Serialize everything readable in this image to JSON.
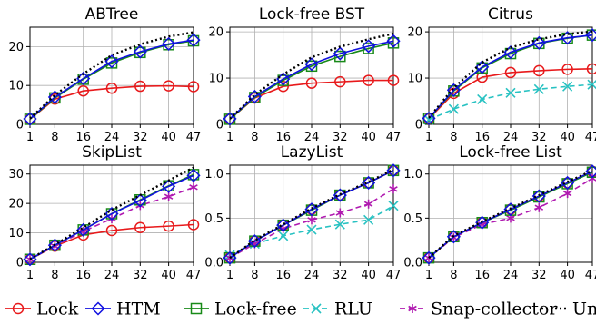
{
  "legend": {
    "series": [
      {
        "name": "Lock",
        "color": "#e8191b",
        "marker": "circle",
        "dash": "solid"
      },
      {
        "name": "HTM",
        "color": "#1010e0",
        "marker": "diamond",
        "dash": "solid"
      },
      {
        "name": "Lock-free",
        "color": "#188a18",
        "marker": "square",
        "dash": "solid"
      },
      {
        "name": "RLU",
        "color": "#28c2c2",
        "marker": "x",
        "dash": "dashed"
      },
      {
        "name": "Snap-collector",
        "color": "#b01ab0",
        "marker": "star",
        "dash": "dashed"
      },
      {
        "name": "Unsafe",
        "color": "#000000",
        "marker": "none",
        "dash": "dotted"
      }
    ]
  },
  "chart_data": [
    {
      "type": "line",
      "title": "ABTree",
      "x": [
        1,
        8,
        16,
        24,
        32,
        40,
        47
      ],
      "xlim": [
        1,
        47
      ],
      "ylim": [
        0,
        25
      ],
      "yticks": [
        0,
        10,
        20
      ],
      "ytick_labels": [
        "0",
        "10",
        "20"
      ],
      "grid": true,
      "series": [
        {
          "name": "Lock",
          "values": [
            1.3,
            6.5,
            8.6,
            9.3,
            9.8,
            9.9,
            9.7
          ]
        },
        {
          "name": "HTM",
          "values": [
            1.4,
            7.0,
            11.8,
            16.2,
            18.7,
            20.7,
            21.7
          ]
        },
        {
          "name": "Lock-free",
          "values": [
            1.3,
            6.8,
            11.6,
            15.8,
            18.5,
            20.5,
            21.5
          ]
        },
        {
          "name": "Unsafe",
          "values": [
            1.5,
            7.5,
            13.0,
            17.8,
            20.6,
            22.6,
            23.7
          ]
        }
      ]
    },
    {
      "type": "line",
      "title": "Lock-free BST",
      "x": [
        1,
        8,
        16,
        24,
        32,
        40,
        47
      ],
      "xlim": [
        1,
        47
      ],
      "ylim": [
        0,
        21
      ],
      "yticks": [
        0,
        10,
        20
      ],
      "ytick_labels": [
        "0",
        "10",
        "20"
      ],
      "grid": true,
      "series": [
        {
          "name": "Lock",
          "values": [
            1.1,
            5.7,
            8.2,
            8.9,
            9.2,
            9.5,
            9.5
          ]
        },
        {
          "name": "HTM",
          "values": [
            1.2,
            6.0,
            9.8,
            13.0,
            15.3,
            16.9,
            18.0
          ]
        },
        {
          "name": "Lock-free",
          "values": [
            1.1,
            5.8,
            9.5,
            12.6,
            14.7,
            16.4,
            17.6
          ]
        },
        {
          "name": "Unsafe",
          "values": [
            1.2,
            6.4,
            10.8,
            14.5,
            16.8,
            18.4,
            19.6
          ]
        }
      ]
    },
    {
      "type": "line",
      "title": "Citrus",
      "x": [
        1,
        8,
        16,
        24,
        32,
        40,
        47
      ],
      "xlim": [
        1,
        47
      ],
      "ylim": [
        0,
        21
      ],
      "yticks": [
        0,
        10,
        20
      ],
      "ytick_labels": [
        "0",
        "10",
        "20"
      ],
      "grid": true,
      "series": [
        {
          "name": "Lock",
          "values": [
            1.2,
            6.7,
            10.2,
            11.2,
            11.6,
            11.9,
            12.0
          ]
        },
        {
          "name": "HTM",
          "values": [
            1.3,
            7.4,
            12.4,
            15.6,
            17.6,
            18.7,
            19.3
          ]
        },
        {
          "name": "Lock-free",
          "values": [
            1.3,
            7.2,
            12.2,
            15.3,
            17.5,
            18.6,
            19.3
          ]
        },
        {
          "name": "RLU",
          "values": [
            1.0,
            3.3,
            5.4,
            6.8,
            7.6,
            8.2,
            8.6
          ]
        },
        {
          "name": "Unsafe",
          "values": [
            1.4,
            7.9,
            13.4,
            16.6,
            18.4,
            19.5,
            20.1
          ]
        }
      ]
    },
    {
      "type": "line",
      "title": "SkipList",
      "x": [
        1,
        8,
        16,
        24,
        32,
        40,
        47
      ],
      "xlim": [
        1,
        47
      ],
      "ylim": [
        0,
        33
      ],
      "yticks": [
        0,
        10,
        20,
        30
      ],
      "ytick_labels": [
        "0",
        "10",
        "20",
        "30"
      ],
      "grid": true,
      "series": [
        {
          "name": "Lock",
          "values": [
            1.0,
            5.5,
            9.3,
            10.8,
            11.8,
            12.3,
            12.8
          ]
        },
        {
          "name": "HTM",
          "values": [
            1.0,
            5.8,
            11.0,
            16.5,
            21.0,
            25.8,
            29.5
          ]
        },
        {
          "name": "Lock-free",
          "values": [
            1.0,
            5.8,
            11.0,
            16.5,
            21.2,
            26.0,
            29.8
          ]
        },
        {
          "name": "Snap-collector",
          "values": [
            1.0,
            5.5,
            10.5,
            14.8,
            19.3,
            22.3,
            25.5
          ]
        },
        {
          "name": "Unsafe",
          "values": [
            1.1,
            6.0,
            11.8,
            17.8,
            22.8,
            27.8,
            32.2
          ]
        }
      ]
    },
    {
      "type": "line",
      "title": "LazyList",
      "x": [
        1,
        8,
        16,
        24,
        32,
        40,
        47
      ],
      "xlim": [
        1,
        47
      ],
      "ylim": [
        0,
        1.1
      ],
      "yticks": [
        0,
        0.5,
        1.0
      ],
      "ytick_labels": [
        "0.0",
        "0.5",
        "1.0"
      ],
      "grid": true,
      "series": [
        {
          "name": "Lock",
          "values": [
            0.05,
            0.24,
            0.42,
            0.6,
            0.76,
            0.9,
            1.04
          ]
        },
        {
          "name": "HTM",
          "values": [
            0.05,
            0.24,
            0.42,
            0.6,
            0.76,
            0.9,
            1.04
          ]
        },
        {
          "name": "Lock-free",
          "values": [
            0.05,
            0.24,
            0.42,
            0.59,
            0.76,
            0.9,
            1.04
          ]
        },
        {
          "name": "RLU",
          "values": [
            0.08,
            0.21,
            0.3,
            0.37,
            0.43,
            0.48,
            0.64
          ]
        },
        {
          "name": "Snap-collector",
          "values": [
            0.05,
            0.21,
            0.38,
            0.48,
            0.56,
            0.66,
            0.83
          ]
        },
        {
          "name": "Unsafe",
          "values": [
            0.05,
            0.25,
            0.43,
            0.61,
            0.77,
            0.91,
            1.05
          ]
        }
      ]
    },
    {
      "type": "line",
      "title": "Lock-free List",
      "x": [
        1,
        8,
        16,
        24,
        32,
        40,
        47
      ],
      "xlim": [
        1,
        47
      ],
      "ylim": [
        0,
        1.1
      ],
      "yticks": [
        0,
        0.5,
        1.0
      ],
      "ytick_labels": [
        "0.0",
        "0.5",
        "1.0"
      ],
      "grid": true,
      "series": [
        {
          "name": "Lock",
          "values": [
            0.05,
            0.29,
            0.45,
            0.6,
            0.75,
            0.9,
            1.03
          ]
        },
        {
          "name": "HTM",
          "values": [
            0.05,
            0.29,
            0.45,
            0.6,
            0.75,
            0.9,
            1.03
          ]
        },
        {
          "name": "Lock-free",
          "values": [
            0.05,
            0.29,
            0.45,
            0.59,
            0.74,
            0.89,
            1.02
          ]
        },
        {
          "name": "Snap-collector",
          "values": [
            0.05,
            0.28,
            0.43,
            0.5,
            0.62,
            0.78,
            0.95
          ]
        },
        {
          "name": "Unsafe",
          "values": [
            0.05,
            0.3,
            0.46,
            0.61,
            0.76,
            0.91,
            1.04
          ]
        }
      ]
    }
  ]
}
